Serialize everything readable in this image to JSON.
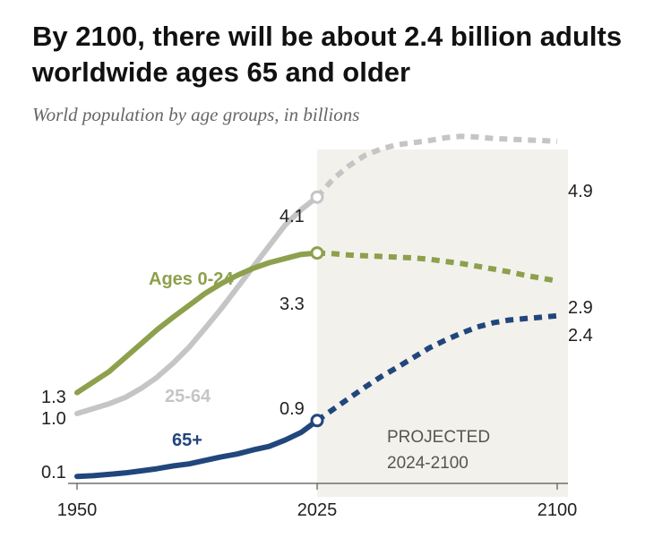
{
  "chart_data": {
    "type": "line",
    "title": "By 2100, there will be about 2.4 billion adults worldwide ages 65 and older",
    "subtitle": "World population by age groups, in billions",
    "xlabel": "",
    "ylabel": "",
    "xlim": [
      1950,
      2100
    ],
    "ylim": [
      0,
      5
    ],
    "x_ticks": [
      "1950",
      "2025",
      "2100"
    ],
    "grid": false,
    "projected_region": {
      "label_line1": "PROJECTED",
      "label_line2": "2024-2100",
      "start": 2025,
      "end": 2100,
      "color": "#f3f1ec"
    },
    "series": [
      {
        "name": "25-64",
        "label": "25-64",
        "color": "#c5c5c5",
        "x": [
          1950,
          1955,
          1960,
          1965,
          1970,
          1975,
          1980,
          1985,
          1990,
          1995,
          2000,
          2005,
          2010,
          2015,
          2020,
          2025,
          2030,
          2035,
          2040,
          2045,
          2050,
          2055,
          2060,
          2065,
          2070,
          2075,
          2080,
          2085,
          2090,
          2095,
          2100
        ],
        "values": [
          1.0,
          1.07,
          1.14,
          1.23,
          1.36,
          1.52,
          1.72,
          1.95,
          2.22,
          2.5,
          2.8,
          3.1,
          3.4,
          3.7,
          3.92,
          4.1,
          4.36,
          4.55,
          4.7,
          4.79,
          4.85,
          4.88,
          4.91,
          4.95,
          4.97,
          4.96,
          4.94,
          4.93,
          4.92,
          4.91,
          4.9
        ],
        "start_label": "1.0",
        "current_label": "4.1",
        "end_label": "4.9"
      },
      {
        "name": "Ages 0-24",
        "label": "Ages 0-24",
        "color": "#8da04c",
        "x": [
          1950,
          1955,
          1960,
          1965,
          1970,
          1975,
          1980,
          1985,
          1990,
          1995,
          2000,
          2005,
          2010,
          2015,
          2020,
          2025,
          2030,
          2035,
          2040,
          2045,
          2050,
          2055,
          2060,
          2065,
          2070,
          2075,
          2080,
          2085,
          2090,
          2095,
          2100
        ],
        "values": [
          1.3,
          1.45,
          1.6,
          1.8,
          2.0,
          2.2,
          2.38,
          2.55,
          2.72,
          2.86,
          2.98,
          3.08,
          3.16,
          3.22,
          3.28,
          3.3,
          3.29,
          3.27,
          3.26,
          3.25,
          3.24,
          3.23,
          3.21,
          3.18,
          3.15,
          3.11,
          3.07,
          3.03,
          2.98,
          2.94,
          2.9
        ],
        "start_label": "1.3",
        "current_label": "3.3",
        "end_label": "2.9"
      },
      {
        "name": "65+",
        "label": "65+",
        "color": "#21467c",
        "x": [
          1950,
          1955,
          1960,
          1965,
          1970,
          1975,
          1980,
          1985,
          1990,
          1995,
          2000,
          2005,
          2010,
          2015,
          2020,
          2025,
          2030,
          2035,
          2040,
          2045,
          2050,
          2055,
          2060,
          2065,
          2070,
          2075,
          2080,
          2085,
          2090,
          2095,
          2100
        ],
        "values": [
          0.1,
          0.11,
          0.13,
          0.15,
          0.18,
          0.21,
          0.25,
          0.28,
          0.33,
          0.38,
          0.42,
          0.48,
          0.53,
          0.62,
          0.73,
          0.9,
          1.06,
          1.22,
          1.38,
          1.53,
          1.66,
          1.8,
          1.94,
          2.05,
          2.15,
          2.24,
          2.3,
          2.34,
          2.36,
          2.38,
          2.4
        ],
        "start_label": "0.1",
        "current_label": "0.9",
        "end_label": "2.4"
      }
    ]
  }
}
